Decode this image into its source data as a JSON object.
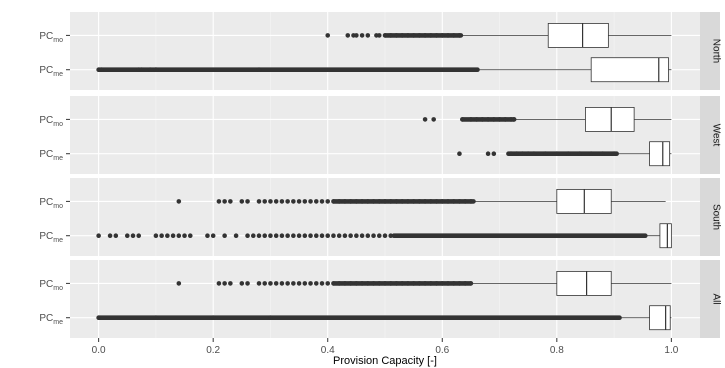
{
  "chart_data": {
    "type": "boxplot",
    "xlabel": "Provision Capacity [-]",
    "xlim": [
      -0.05,
      1.05
    ],
    "x_ticks": [
      {
        "value": 0.0,
        "label": "0.0"
      },
      {
        "value": 0.2,
        "label": "0.2"
      },
      {
        "value": 0.4,
        "label": "0.4"
      },
      {
        "value": 0.6,
        "label": "0.6"
      },
      {
        "value": 0.8,
        "label": "0.8"
      },
      {
        "value": 1.0,
        "label": "1.0"
      }
    ],
    "x_minor_ticks": [
      0.1,
      0.3,
      0.5,
      0.7,
      0.9
    ],
    "grid": true,
    "panel_fill": "#ebebeb",
    "strip_fill": "#d9d9d9",
    "point_color": "#333333",
    "panels": [
      {
        "name": "North",
        "rows": [
          {
            "label_main": "PC",
            "label_sub": "mo",
            "q1": 0.785,
            "median": 0.845,
            "q3": 0.89,
            "whisker_low": 0.633,
            "whisker_high": 1.0,
            "outliers": [
              0.4,
              0.435,
              0.445,
              0.45,
              0.46,
              0.47,
              0.485,
              0.49,
              0.5,
              0.51,
              0.52,
              0.53,
              0.54,
              0.55,
              0.56,
              0.57,
              0.58,
              0.59,
              0.6,
              0.61,
              0.62,
              0.63
            ],
            "outlier_bands": [
              [
                0.5,
                0.633
              ]
            ]
          },
          {
            "label_main": "PC",
            "label_sub": "me",
            "q1": 0.86,
            "median": 0.978,
            "q3": 0.995,
            "whisker_low": 0.662,
            "whisker_high": 1.0,
            "outliers": [
              0.0,
              0.005,
              0.07,
              0.075,
              0.09,
              0.1,
              0.1,
              0.28
            ],
            "outlier_bands": [
              [
                0.0,
                0.662
              ]
            ]
          }
        ]
      },
      {
        "name": "West",
        "rows": [
          {
            "label_main": "PC",
            "label_sub": "mo",
            "q1": 0.85,
            "median": 0.895,
            "q3": 0.935,
            "whisker_low": 0.726,
            "whisker_high": 1.0,
            "outliers": [
              0.57,
              0.585,
              0.635,
              0.65,
              0.66,
              0.67,
              0.68,
              0.69,
              0.7,
              0.71,
              0.72,
              0.725
            ],
            "outlier_bands": [
              [
                0.635,
                0.726
              ]
            ]
          },
          {
            "label_main": "PC",
            "label_sub": "me",
            "q1": 0.962,
            "median": 0.985,
            "q3": 0.997,
            "whisker_low": 0.905,
            "whisker_high": 1.0,
            "outliers": [
              0.63,
              0.68,
              0.69,
              0.72,
              0.73,
              0.74,
              0.75,
              0.76,
              0.78,
              0.8,
              0.82,
              0.84,
              0.86,
              0.88,
              0.9
            ],
            "outlier_bands": [
              [
                0.715,
                0.905
              ]
            ]
          }
        ]
      },
      {
        "name": "South",
        "rows": [
          {
            "label_main": "PC",
            "label_sub": "mo",
            "q1": 0.8,
            "median": 0.848,
            "q3": 0.895,
            "whisker_low": 0.655,
            "whisker_high": 0.99,
            "outliers": [
              0.14,
              0.21,
              0.22,
              0.23,
              0.25,
              0.26,
              0.28,
              0.29,
              0.3,
              0.31,
              0.32,
              0.33,
              0.34,
              0.35,
              0.36,
              0.37,
              0.38,
              0.39,
              0.4,
              0.41,
              0.42,
              0.43,
              0.44,
              0.45,
              0.46,
              0.47,
              0.48,
              0.49,
              0.5,
              0.51,
              0.52,
              0.53,
              0.54,
              0.55,
              0.56,
              0.57,
              0.58,
              0.59,
              0.6,
              0.61,
              0.62,
              0.63,
              0.64,
              0.65
            ],
            "outlier_bands": [
              [
                0.41,
                0.655
              ]
            ]
          },
          {
            "label_main": "PC",
            "label_sub": "me",
            "q1": 0.98,
            "median": 0.993,
            "q3": 1.0,
            "whisker_low": 0.955,
            "whisker_high": 1.0,
            "outliers": [
              0.0,
              0.02,
              0.03,
              0.05,
              0.06,
              0.07,
              0.1,
              0.11,
              0.12,
              0.13,
              0.14,
              0.15,
              0.16,
              0.19,
              0.2,
              0.22,
              0.24,
              0.26,
              0.27,
              0.28,
              0.29,
              0.3,
              0.31,
              0.32,
              0.33,
              0.34,
              0.35,
              0.36,
              0.37,
              0.38,
              0.39,
              0.4,
              0.41,
              0.42,
              0.43,
              0.44,
              0.45,
              0.46,
              0.47,
              0.48,
              0.49,
              0.5,
              0.51
            ],
            "outlier_bands": [
              [
                0.515,
                0.955
              ]
            ]
          }
        ]
      },
      {
        "name": "All",
        "rows": [
          {
            "label_main": "PC",
            "label_sub": "mo",
            "q1": 0.8,
            "median": 0.852,
            "q3": 0.895,
            "whisker_low": 0.65,
            "whisker_high": 1.0,
            "outliers": [
              0.14,
              0.21,
              0.22,
              0.23,
              0.25,
              0.26,
              0.28,
              0.29,
              0.3,
              0.31,
              0.32,
              0.33,
              0.34,
              0.35,
              0.36,
              0.37,
              0.38,
              0.39,
              0.4,
              0.41,
              0.42,
              0.43,
              0.44,
              0.45,
              0.46,
              0.47,
              0.48,
              0.49,
              0.5,
              0.51,
              0.52,
              0.53,
              0.54,
              0.55,
              0.56,
              0.57,
              0.58,
              0.59,
              0.6,
              0.61,
              0.62,
              0.63,
              0.64,
              0.65
            ],
            "outlier_bands": [
              [
                0.41,
                0.65
              ]
            ]
          },
          {
            "label_main": "PC",
            "label_sub": "me",
            "q1": 0.962,
            "median": 0.99,
            "q3": 0.998,
            "whisker_low": 0.91,
            "whisker_high": 1.0,
            "outliers": [
              0.0,
              0.1,
              0.2,
              0.3
            ],
            "outlier_bands": [
              [
                0.0,
                0.91
              ]
            ]
          }
        ]
      }
    ]
  }
}
